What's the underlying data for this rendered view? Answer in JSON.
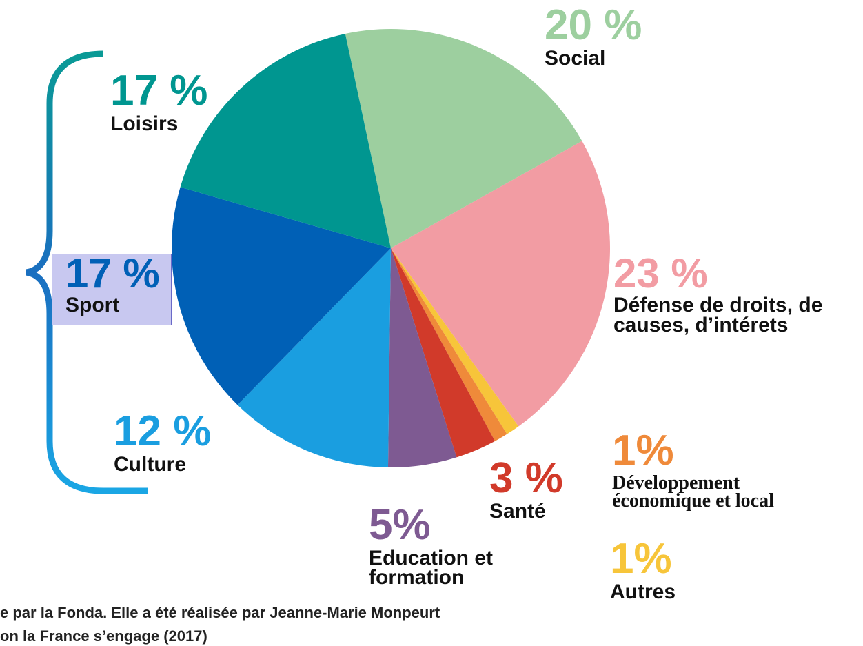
{
  "chart_data": {
    "type": "pie",
    "categories": [
      "Social",
      "Défense de droits, de causes, d’intérets",
      "Autres",
      "Développement économique et local",
      "Santé",
      "Education et formation",
      "Culture",
      "Sport",
      "Loisirs"
    ],
    "values": [
      20,
      23,
      1,
      1,
      3,
      5,
      12,
      17,
      17
    ],
    "value_labels": [
      "20 %",
      "23 %",
      "1%",
      "1%",
      "3 %",
      "5%",
      "12 %",
      "17 %",
      "17 %"
    ],
    "colors": [
      "#9dcf9f",
      "#f29ca3",
      "#f7c53a",
      "#ef8a3a",
      "#d13a2a",
      "#7e5a92",
      "#1a9ee0",
      "#0060b6",
      "#009690"
    ],
    "footnote": [
      "e par la Fonda. Elle a été réalisée par Jeanne-Marie Monpeurt",
      "on la France s’engage (2017)"
    ]
  }
}
